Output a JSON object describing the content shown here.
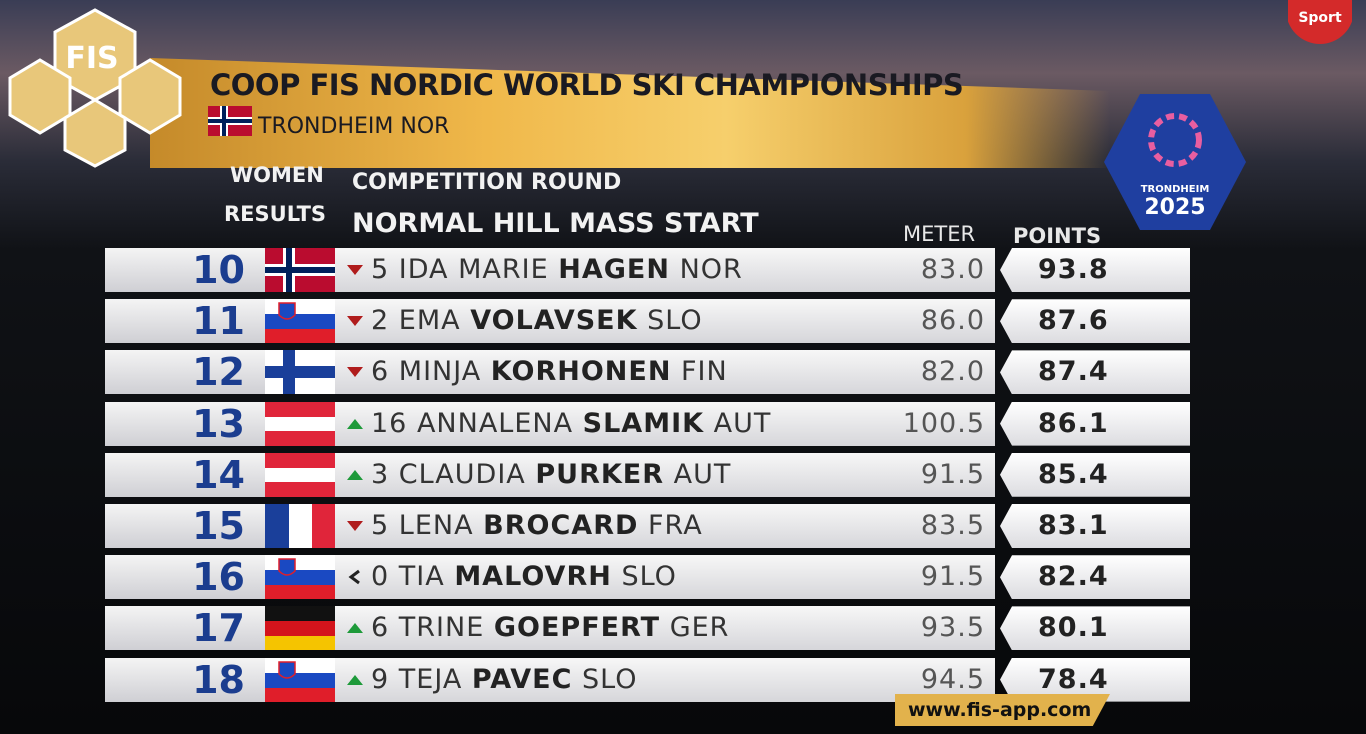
{
  "header": {
    "title": "COOP FIS NORDIC WORLD SKI CHAMPIONSHIPS",
    "city": "TRONDHEIM",
    "country": "NOR",
    "gender": "WOMEN",
    "results": "RESULTS",
    "round": "COMPETITION ROUND",
    "event": "NORMAL HILL MASS START"
  },
  "logos": {
    "fis": "FIS",
    "host_city": "TRONDHEIM",
    "year": "2025",
    "broadcaster": "Sport"
  },
  "table": {
    "columns": [
      "METER",
      "POINTS"
    ],
    "rows": [
      {
        "rank": "10",
        "trend": "down",
        "change": "5",
        "first": "IDA MARIE",
        "last": "HAGEN",
        "nation": "NOR",
        "meter": "83.0",
        "points": "93.8"
      },
      {
        "rank": "11",
        "trend": "down",
        "change": "2",
        "first": "EMA",
        "last": "VOLAVSEK",
        "nation": "SLO",
        "meter": "86.0",
        "points": "87.6"
      },
      {
        "rank": "12",
        "trend": "down",
        "change": "6",
        "first": "MINJA",
        "last": "KORHONEN",
        "nation": "FIN",
        "meter": "82.0",
        "points": "87.4"
      },
      {
        "rank": "13",
        "trend": "up",
        "change": "16",
        "first": "ANNALENA",
        "last": "SLAMIK",
        "nation": "AUT",
        "meter": "100.5",
        "points": "86.1"
      },
      {
        "rank": "14",
        "trend": "up",
        "change": "3",
        "first": "CLAUDIA",
        "last": "PURKER",
        "nation": "AUT",
        "meter": "91.5",
        "points": "85.4"
      },
      {
        "rank": "15",
        "trend": "down",
        "change": "5",
        "first": "LENA",
        "last": "BROCARD",
        "nation": "FRA",
        "meter": "83.5",
        "points": "83.1"
      },
      {
        "rank": "16",
        "trend": "same",
        "change": "0",
        "first": "TIA",
        "last": "MALOVRH",
        "nation": "SLO",
        "meter": "91.5",
        "points": "82.4"
      },
      {
        "rank": "17",
        "trend": "up",
        "change": "6",
        "first": "TRINE",
        "last": "GOEPFERT",
        "nation": "GER",
        "meter": "93.5",
        "points": "80.1"
      },
      {
        "rank": "18",
        "trend": "up",
        "change": "9",
        "first": "TEJA",
        "last": "PAVEC",
        "nation": "SLO",
        "meter": "94.5",
        "points": "78.4"
      }
    ]
  },
  "footer": {
    "url": "www.fis-app.com"
  }
}
